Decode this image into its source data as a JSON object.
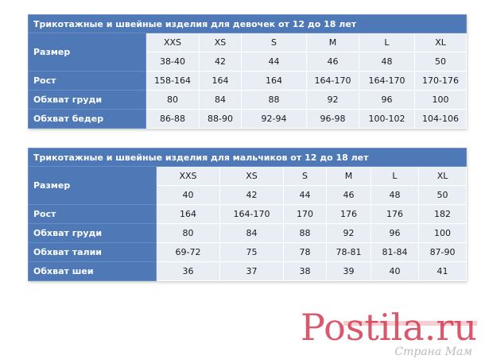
{
  "girls": {
    "title": "Трикотажные и швейные изделия для девочек от 12 до 18 лет",
    "row_label_size": "Размер",
    "sizes": [
      "XXS",
      "XS",
      "S",
      "M",
      "L",
      "XL"
    ],
    "numeric_sizes": [
      "38-40",
      "42",
      "44",
      "46",
      "48",
      "50"
    ],
    "rows": [
      {
        "label": "Рост",
        "values": [
          "158-164",
          "164",
          "164",
          "164-170",
          "164-170",
          "170-176"
        ]
      },
      {
        "label": "Обхват груди",
        "values": [
          "80",
          "84",
          "88",
          "92",
          "96",
          "100"
        ]
      },
      {
        "label": "Обхват бедер",
        "values": [
          "86-88",
          "88-90",
          "92-94",
          "96-98",
          "100-102",
          "104-106"
        ]
      }
    ]
  },
  "boys": {
    "title": "Трикотажные и швейные изделия для мальчиков от 12 до 18 лет",
    "row_label_size": "Размер",
    "sizes": [
      "XXS",
      "XS",
      "S",
      "M",
      "L",
      "XL"
    ],
    "numeric_sizes": [
      "40",
      "42",
      "44",
      "46",
      "48",
      "50"
    ],
    "rows": [
      {
        "label": "Рост",
        "values": [
          "164",
          "164-170",
          "170",
          "176",
          "176",
          "182"
        ]
      },
      {
        "label": "Обхват груди",
        "values": [
          "80",
          "84",
          "88",
          "92",
          "96",
          "100"
        ]
      },
      {
        "label": "Обхват талии",
        "values": [
          "69-72",
          "75",
          "78",
          "78-81",
          "81-84",
          "87-90"
        ]
      },
      {
        "label": "Обхват шеи",
        "values": [
          "36",
          "37",
          "38",
          "39",
          "40",
          "41"
        ]
      }
    ]
  },
  "watermark": {
    "brand": "Postila.ru",
    "tagline": "Страна Мам",
    "color": "#d2334a"
  }
}
